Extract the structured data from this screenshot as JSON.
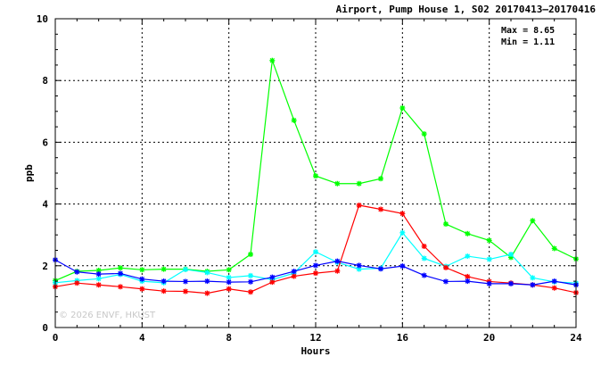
{
  "chart_data": {
    "type": "line",
    "title": "Airport, Pump House 1, S02 20170413–20170416",
    "xlabel": "Hours",
    "ylabel": "ppb",
    "xlim": [
      0,
      24
    ],
    "ylim": [
      0,
      10
    ],
    "xticks": [
      0,
      4,
      8,
      12,
      16,
      20,
      24
    ],
    "yticks": [
      0,
      2,
      4,
      6,
      8,
      10
    ],
    "grid": true,
    "stats": {
      "max": "Max = 8.65",
      "min": "Min = 1.11"
    },
    "watermark": "© 2026  ENVF, HKUST",
    "x": [
      0,
      1,
      2,
      3,
      4,
      5,
      6,
      7,
      8,
      9,
      10,
      11,
      12,
      13,
      14,
      15,
      16,
      17,
      18,
      19,
      20,
      21,
      22,
      23,
      24
    ],
    "series": [
      {
        "color": "#00ff00",
        "values": [
          1.52,
          1.82,
          1.85,
          1.93,
          1.87,
          1.89,
          1.89,
          1.82,
          1.87,
          2.37,
          8.65,
          6.71,
          4.91,
          4.66,
          4.66,
          4.82,
          7.11,
          6.27,
          3.35,
          3.04,
          2.82,
          2.27,
          3.46,
          2.56,
          2.22
        ]
      },
      {
        "color": "#00ffff",
        "values": [
          1.45,
          1.52,
          1.58,
          1.72,
          1.5,
          1.45,
          1.88,
          1.78,
          1.62,
          1.68,
          1.55,
          1.76,
          2.45,
          2.11,
          1.89,
          1.92,
          3.07,
          2.24,
          1.98,
          2.31,
          2.21,
          2.37,
          1.61,
          1.48,
          1.44
        ]
      },
      {
        "color": "#ff0000",
        "values": [
          1.32,
          1.44,
          1.38,
          1.32,
          1.25,
          1.18,
          1.17,
          1.11,
          1.25,
          1.15,
          1.47,
          1.66,
          1.76,
          1.83,
          3.96,
          3.83,
          3.69,
          2.63,
          1.94,
          1.65,
          1.49,
          1.44,
          1.38,
          1.28,
          1.13
        ]
      },
      {
        "color": "#0000ff",
        "values": [
          2.19,
          1.8,
          1.73,
          1.75,
          1.57,
          1.5,
          1.49,
          1.5,
          1.47,
          1.48,
          1.63,
          1.82,
          2.01,
          2.15,
          2.01,
          1.9,
          1.99,
          1.69,
          1.49,
          1.5,
          1.42,
          1.42,
          1.38,
          1.5,
          1.38
        ]
      }
    ]
  }
}
